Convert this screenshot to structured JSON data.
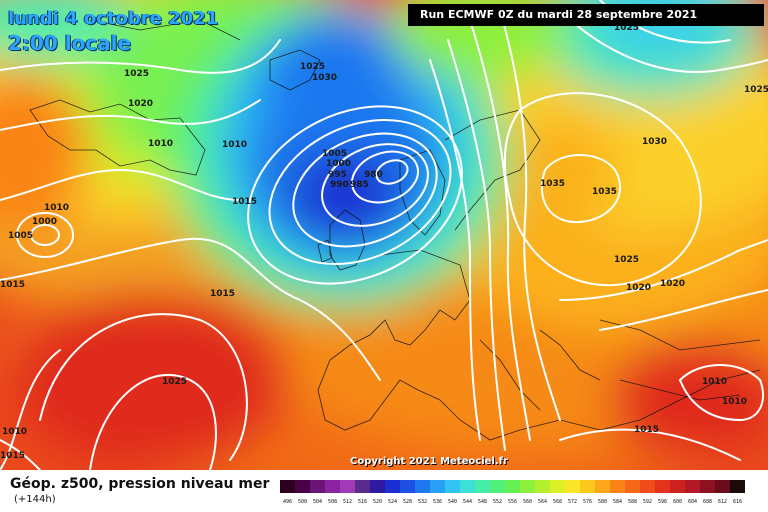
{
  "header": {
    "date": "lundi 4 octobre 2021",
    "time": "2:00 locale",
    "run": "Run ECMWF 0Z du mardi 28 septembre 2021"
  },
  "copyright": "Copyright 2021 Meteociel.fr",
  "legend": {
    "title": "Géop. z500, pression niveau mer",
    "subtitle": "(+144h)",
    "ticks": [
      "496",
      "500",
      "504",
      "508",
      "512",
      "516",
      "520",
      "524",
      "528",
      "532",
      "536",
      "540",
      "544",
      "548",
      "552",
      "556",
      "560",
      "564",
      "568",
      "572",
      "576",
      "580",
      "584",
      "588",
      "592",
      "596",
      "600",
      "604",
      "608",
      "612",
      "616"
    ],
    "colors": [
      "#2e0020",
      "#4a0046",
      "#6a1478",
      "#8a24a0",
      "#a03ab6",
      "#5a2a8c",
      "#2e1aa0",
      "#1a2ed2",
      "#1e50e6",
      "#1e78f0",
      "#28a0f4",
      "#32c4f2",
      "#3ce0d6",
      "#46ecaa",
      "#50f07a",
      "#64f050",
      "#8cf03c",
      "#b4f02c",
      "#dcf028",
      "#fae628",
      "#fcc81e",
      "#fca81a",
      "#fa8418",
      "#f66818",
      "#f04c1a",
      "#e4321c",
      "#cc2220",
      "#b21826",
      "#8c1222",
      "#6a0c1a",
      "#1a0a0a"
    ]
  },
  "isobars": {
    "labels": [
      "1025",
      "1020",
      "1010",
      "1010",
      "1000",
      "1005",
      "1015",
      "1025",
      "1030",
      "1010",
      "1015",
      "1005",
      "1000",
      "995",
      "990",
      "985",
      "980",
      "1015",
      "1025",
      "1010",
      "1030",
      "1035",
      "1035",
      "1025",
      "1020",
      "1020",
      "1025",
      "1010",
      "1010",
      "1015",
      "1015",
      "1025"
    ]
  }
}
